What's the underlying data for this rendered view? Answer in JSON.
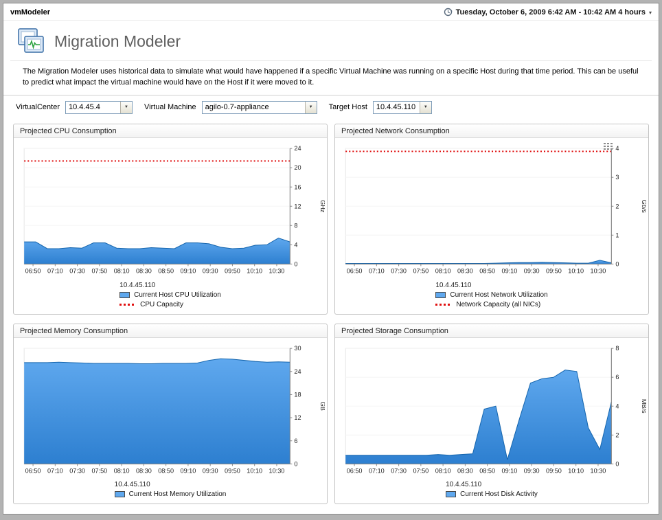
{
  "window": {
    "title": "vmModeler",
    "time_range": "Tuesday, October 6, 2009 6:42 AM - 10:42 AM 4 hours",
    "caret": "▾"
  },
  "header": {
    "title": "Migration Modeler",
    "description": "The Migration Modeler uses historical data to simulate what would have happened if a specific Virtual Machine was running on a specific Host during that time period. This can be useful to predict what impact the virtual machine would have on the Host if it were moved to it."
  },
  "filters": {
    "virtualcenter": {
      "label": "VirtualCenter",
      "value": "10.4.45.4"
    },
    "virtual_machine": {
      "label": "Virtual Machine",
      "value": "agilo-0.7-appliance"
    },
    "target_host": {
      "label": "Target Host",
      "value": "10.4.45.110"
    }
  },
  "colors": {
    "series_blue_top": "#5fa8ee",
    "series_blue_bottom": "#2d7fd0",
    "series_blue_edge": "#1565ad",
    "capacity_red": "#e01010"
  },
  "chart_data": [
    {
      "type": "area",
      "title": "Projected CPU Consumption",
      "host": "10.4.45.110",
      "ylabel": "GHz",
      "ylim": [
        0,
        24
      ],
      "yticks": [
        0,
        4,
        8,
        12,
        16,
        20,
        24
      ],
      "xticklabels": [
        "06:50",
        "07:10",
        "07:30",
        "07:50",
        "08:10",
        "08:30",
        "08:50",
        "09:10",
        "09:30",
        "09:50",
        "10:10",
        "10:30"
      ],
      "x_offset_min": 8,
      "x_step_min": 20,
      "x_total_min": 240,
      "grid": false,
      "legend_position": "bottom",
      "menu_icon": false,
      "series": [
        {
          "name": "Current Host CPU Utilization",
          "values": [
            4.6,
            4.6,
            3.2,
            3.2,
            3.4,
            3.3,
            4.4,
            4.4,
            3.3,
            3.2,
            3.2,
            3.4,
            3.3,
            3.2,
            4.4,
            4.4,
            4.2,
            3.5,
            3.2,
            3.3,
            3.9,
            4.0,
            5.4,
            4.6
          ]
        }
      ],
      "capacity": {
        "name": "CPU Capacity",
        "value": 21.4
      }
    },
    {
      "type": "area",
      "title": "Projected Network Consumption",
      "host": "10.4.45.110",
      "ylabel": "Gb/s",
      "ylim": [
        0,
        4
      ],
      "yticks": [
        0,
        1,
        2,
        3,
        4
      ],
      "xticklabels": [
        "06:50",
        "07:10",
        "07:30",
        "07:50",
        "08:10",
        "08:30",
        "08:50",
        "09:10",
        "09:30",
        "09:50",
        "10:10",
        "10:30"
      ],
      "x_offset_min": 8,
      "x_step_min": 20,
      "x_total_min": 240,
      "grid": false,
      "legend_position": "bottom",
      "menu_icon": true,
      "series": [
        {
          "name": "Current Host Network Utilization",
          "values": [
            0.02,
            0.02,
            0.02,
            0.02,
            0.02,
            0.02,
            0.02,
            0.02,
            0.02,
            0.02,
            0.02,
            0.02,
            0.02,
            0.03,
            0.04,
            0.05,
            0.05,
            0.06,
            0.05,
            0.04,
            0.03,
            0.03,
            0.13,
            0.04
          ]
        }
      ],
      "capacity": {
        "name": "Network Capacity (all NICs)",
        "value": 3.9
      }
    },
    {
      "type": "area",
      "title": "Projected Memory Consumption",
      "host": "10.4.45.110",
      "ylabel": "GB",
      "ylim": [
        0,
        30
      ],
      "yticks": [
        0,
        6,
        12,
        18,
        24,
        30
      ],
      "xticklabels": [
        "06:50",
        "07:10",
        "07:30",
        "07:50",
        "08:10",
        "08:30",
        "08:50",
        "09:10",
        "09:30",
        "09:50",
        "10:10",
        "10:30"
      ],
      "x_offset_min": 8,
      "x_step_min": 20,
      "x_total_min": 240,
      "grid": false,
      "legend_position": "bottom",
      "menu_icon": false,
      "series": [
        {
          "name": "Current Host Memory Utilization",
          "values": [
            26.3,
            26.3,
            26.3,
            26.4,
            26.3,
            26.2,
            26.1,
            26.1,
            26.1,
            26.1,
            26.0,
            26.0,
            26.1,
            26.1,
            26.1,
            26.2,
            26.9,
            27.3,
            27.2,
            26.9,
            26.6,
            26.4,
            26.5,
            26.4
          ]
        }
      ]
    },
    {
      "type": "area",
      "title": "Projected Storage Consumption",
      "host": "10.4.45.110",
      "ylabel": "MB/s",
      "ylim": [
        0,
        8
      ],
      "yticks": [
        0,
        2,
        4,
        6,
        8
      ],
      "xticklabels": [
        "06:50",
        "07:10",
        "07:30",
        "07:50",
        "08:10",
        "08:30",
        "08:50",
        "09:10",
        "09:30",
        "09:50",
        "10:10",
        "10:30"
      ],
      "x_offset_min": 8,
      "x_step_min": 20,
      "x_total_min": 240,
      "grid": false,
      "legend_position": "bottom",
      "menu_icon": false,
      "series": [
        {
          "name": "Current Host Disk Activity",
          "values": [
            0.6,
            0.6,
            0.6,
            0.6,
            0.6,
            0.6,
            0.6,
            0.6,
            0.65,
            0.6,
            0.65,
            0.7,
            3.8,
            4.0,
            0.3,
            3.0,
            5.6,
            5.9,
            6.0,
            6.5,
            6.4,
            2.5,
            1.0,
            4.3
          ]
        }
      ]
    }
  ]
}
